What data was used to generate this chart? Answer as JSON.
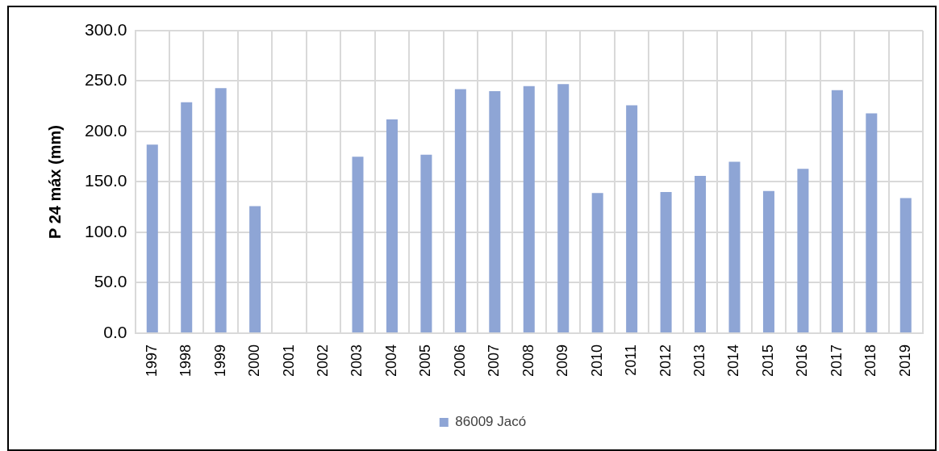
{
  "chart_data": {
    "type": "bar",
    "ylabel": "P 24 máx (mm)",
    "categories": [
      "1997",
      "1998",
      "1999",
      "2000",
      "2001",
      "2002",
      "2003",
      "2004",
      "2005",
      "2006",
      "2007",
      "2008",
      "2009",
      "2010",
      "2011",
      "2012",
      "2013",
      "2014",
      "2015",
      "2016",
      "2017",
      "2018",
      "2019"
    ],
    "series": [
      {
        "name": "86009 Jacó",
        "color": "#8ea5d5",
        "values": [
          187,
          229,
          243,
          126,
          null,
          null,
          175,
          212,
          177,
          242,
          240,
          245,
          247,
          139,
          226,
          140,
          156,
          170,
          141,
          163,
          241,
          218,
          134
        ]
      }
    ],
    "ylim": [
      0,
      300
    ],
    "yticks": [
      {
        "value": 0,
        "label": "0.0"
      },
      {
        "value": 50,
        "label": "50.0"
      },
      {
        "value": 100,
        "label": "100.0"
      },
      {
        "value": 150,
        "label": "150.0"
      },
      {
        "value": 200,
        "label": "200.0"
      },
      {
        "value": 250,
        "label": "250.0"
      },
      {
        "value": 300,
        "label": "300.0"
      }
    ],
    "grid": true,
    "legend": "bottom"
  }
}
